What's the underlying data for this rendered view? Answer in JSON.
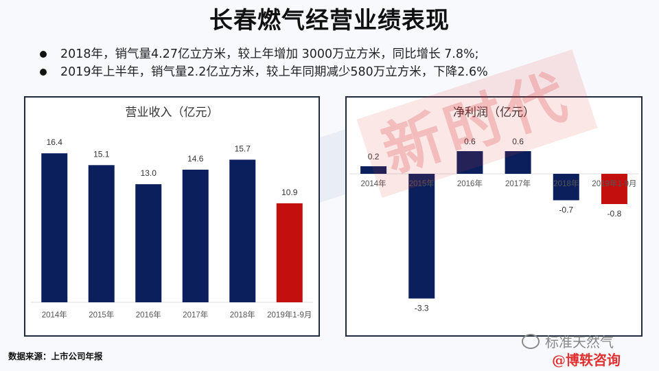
{
  "page": {
    "title": "长春燃气经营业绩表现",
    "bullets": [
      "2018年，销气量4.27亿立方米，较上年增加 3000万立方米，同比增长 7.8%;",
      "2019年上半年，销气量2.2亿立方米，较上年同期减少580万立方米，下降2.6%"
    ],
    "source": "数据来源：上市公司年报",
    "wechat_label": "标准天然气",
    "brand": "@博轶咨询",
    "stamp_text": "新时代"
  },
  "colors": {
    "bar_navy": "#0b1f5c",
    "bar_red": "#c40f0f",
    "title": "#111111"
  },
  "chart_data": [
    {
      "type": "bar",
      "title": "营业收入（亿元）",
      "categories": [
        "2014年",
        "2015年",
        "2016年",
        "2017年",
        "2018年",
        "2019年1-9月"
      ],
      "values": [
        16.4,
        15.1,
        13.0,
        14.6,
        15.7,
        10.9
      ],
      "labels": [
        "16.4",
        "15.1",
        "13.0",
        "14.6",
        "15.7",
        "10.9"
      ],
      "highlight_index": 5,
      "ylim": [
        0,
        18
      ],
      "grid": false
    },
    {
      "type": "bar",
      "title": "净利润（亿元）",
      "categories": [
        "2014年",
        "2015年",
        "2016年",
        "2017年",
        "2018年",
        "2019年1-9月"
      ],
      "values": [
        0.2,
        -3.3,
        0.6,
        0.6,
        -0.7,
        -0.8
      ],
      "labels": [
        "0.2",
        "-3.3",
        "0.6",
        "0.6",
        "-0.7",
        "-0.8"
      ],
      "highlight_index": 5,
      "ylim": [
        -3.5,
        1.0
      ],
      "grid": false
    }
  ]
}
